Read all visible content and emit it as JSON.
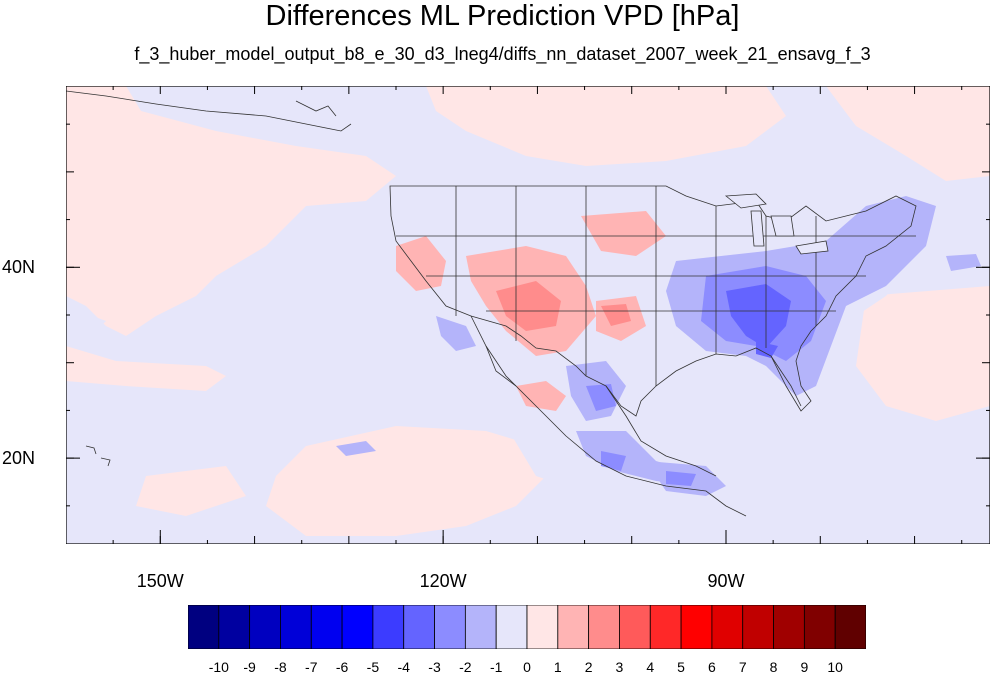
{
  "title": "Differences ML Prediction VPD [hPa]",
  "subtitle": "f_3_huber_model_output_b8_e_30_d3_lneg4/diffs_nn_dataset_2007_week_21_ensavg_f_3",
  "map": {
    "projection": "lat-lon",
    "lon_range": [
      -160,
      -62
    ],
    "lat_range": [
      11,
      59
    ],
    "lon_ticks": [
      {
        "value": -150,
        "label": "150W"
      },
      {
        "value": -120,
        "label": "120W"
      },
      {
        "value": -90,
        "label": "90W"
      }
    ],
    "lat_ticks": [
      {
        "value": 40,
        "label": "40N"
      },
      {
        "value": 20,
        "label": "20N"
      }
    ],
    "background_color": "#e6e6fa"
  },
  "colorbar": {
    "labels": [
      "-10",
      "-9",
      "-8",
      "-7",
      "-6",
      "-5",
      "-4",
      "-3",
      "-2",
      "-1",
      "0",
      "1",
      "2",
      "3",
      "4",
      "5",
      "6",
      "7",
      "8",
      "9",
      "10"
    ],
    "colors": [
      "#000080",
      "#0000a0",
      "#0000c0",
      "#0000d8",
      "#0000f0",
      "#0000ff",
      "#3c3cff",
      "#6464ff",
      "#8c8cff",
      "#b4b4fa",
      "#e6e6fa",
      "#ffe6e6",
      "#ffb4b4",
      "#ff8c8c",
      "#ff5a5a",
      "#ff2828",
      "#ff0000",
      "#e00000",
      "#c00000",
      "#a00000",
      "#800000",
      "#600000"
    ]
  }
}
